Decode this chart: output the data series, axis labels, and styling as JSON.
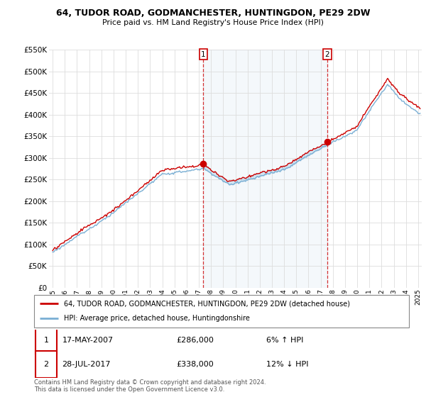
{
  "title": "64, TUDOR ROAD, GODMANCHESTER, HUNTINGDON, PE29 2DW",
  "subtitle": "Price paid vs. HM Land Registry's House Price Index (HPI)",
  "red_label": "64, TUDOR ROAD, GODMANCHESTER, HUNTINGDON, PE29 2DW (detached house)",
  "blue_label": "HPI: Average price, detached house, Huntingdonshire",
  "sale1_date": "17-MAY-2007",
  "sale1_price": 286000,
  "sale1_pct": "6% ↑ HPI",
  "sale2_date": "28-JUL-2017",
  "sale2_price": 338000,
  "sale2_pct": "12% ↓ HPI",
  "footer": "Contains HM Land Registry data © Crown copyright and database right 2024.\nThis data is licensed under the Open Government Licence v3.0.",
  "ylim": [
    0,
    550000
  ],
  "yticks": [
    0,
    50000,
    100000,
    150000,
    200000,
    250000,
    300000,
    350000,
    400000,
    450000,
    500000,
    550000
  ],
  "xlim_start": 1994.7,
  "xlim_end": 2025.3,
  "background_color": "#ffffff",
  "grid_color": "#dddddd",
  "red_color": "#cc0000",
  "blue_color": "#7aafd4",
  "shade_color": "#ddeeff"
}
